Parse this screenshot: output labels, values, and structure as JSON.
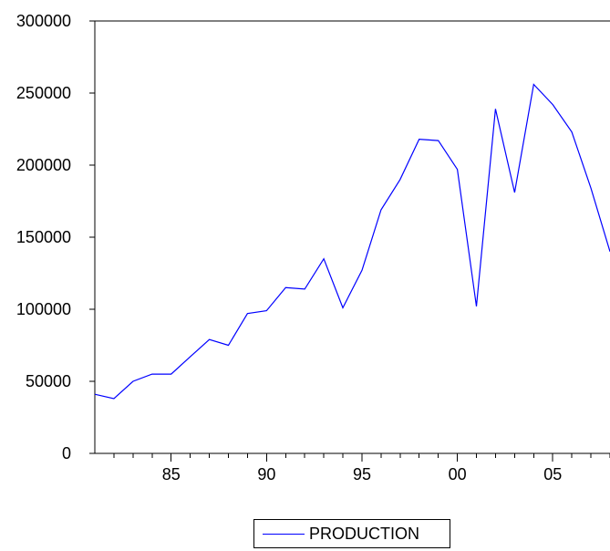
{
  "chart_data": {
    "type": "line",
    "x": [
      1981,
      1982,
      1983,
      1984,
      1985,
      1986,
      1987,
      1988,
      1989,
      1990,
      1991,
      1992,
      1993,
      1994,
      1995,
      1996,
      1997,
      1998,
      1999,
      2000,
      2001,
      2002,
      2003,
      2004,
      2005,
      2006,
      2007,
      2008
    ],
    "series": [
      {
        "name": "PRODUCTION",
        "color": "#0000ff",
        "values": [
          41000,
          38000,
          50000,
          55000,
          55000,
          67000,
          79000,
          75000,
          97000,
          99000,
          115000,
          114000,
          135000,
          101000,
          127000,
          169000,
          190000,
          218000,
          217000,
          197000,
          102000,
          239000,
          181000,
          256000,
          242000,
          223000,
          184000,
          140000
        ]
      }
    ],
    "ylim": [
      0,
      300000
    ],
    "xlim": [
      1981,
      2008
    ],
    "yticks": [
      0,
      50000,
      100000,
      150000,
      200000,
      250000,
      300000
    ],
    "ytick_labels": [
      "0",
      "50000",
      "100000",
      "150000",
      "200000",
      "250000",
      "300000"
    ],
    "xtick_labels": [
      {
        "year": 1985,
        "label": "85"
      },
      {
        "year": 1990,
        "label": "90"
      },
      {
        "year": 1995,
        "label": "95"
      },
      {
        "year": 2000,
        "label": "00"
      },
      {
        "year": 2005,
        "label": "05"
      }
    ],
    "title": "",
    "xlabel": "",
    "ylabel": "",
    "grid": false,
    "legend": "bottom-center"
  },
  "legend": {
    "label": "PRODUCTION"
  }
}
